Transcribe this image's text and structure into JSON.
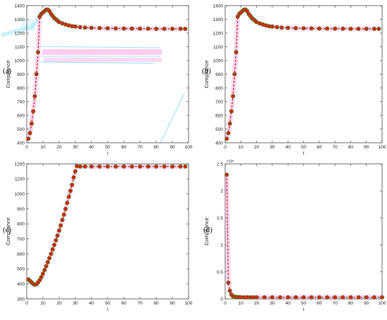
{
  "colors": {
    "line": "#b02010",
    "marker_fill": "#e02010",
    "marker_edge": "#4a7a20",
    "glow": "#ff66cc",
    "artifact_pink": "#ff7fd8",
    "artifact_cyan": "#8fdfff"
  },
  "chart_data": [
    {
      "panel_label": "(a)",
      "type": "line",
      "xlabel": "i",
      "ylabel": "Compliance",
      "xlim": [
        0,
        100
      ],
      "ylim": [
        400,
        1400
      ],
      "xticks": [
        0,
        10,
        20,
        30,
        40,
        50,
        60,
        70,
        80,
        90,
        100
      ],
      "yticks": [
        400,
        500,
        600,
        700,
        800,
        900,
        1000,
        1100,
        1200,
        1300,
        1400
      ],
      "exponent_label": "",
      "series": [
        {
          "x": [
            1,
            2,
            3,
            4,
            5,
            6,
            7,
            8,
            9,
            10,
            11,
            12,
            13,
            14,
            15,
            16,
            17,
            18,
            19,
            20,
            22,
            24,
            26,
            28,
            30,
            33,
            36,
            40,
            45,
            50,
            55,
            60,
            65,
            70,
            75,
            80,
            85,
            90,
            95,
            98
          ],
          "values": [
            430,
            470,
            540,
            630,
            740,
            900,
            1060,
            1320,
            1340,
            1350,
            1360,
            1370,
            1370,
            1360,
            1340,
            1325,
            1310,
            1300,
            1290,
            1280,
            1270,
            1262,
            1256,
            1250,
            1247,
            1243,
            1240,
            1238,
            1236,
            1235,
            1234,
            1233,
            1233,
            1232,
            1232,
            1231,
            1231,
            1231,
            1231,
            1231
          ]
        }
      ]
    },
    {
      "panel_label": "(b)",
      "type": "line",
      "xlabel": "i",
      "ylabel": "Compliance",
      "xlim": [
        0,
        100
      ],
      "ylim": [
        400,
        1400
      ],
      "xticks": [
        0,
        10,
        20,
        30,
        40,
        50,
        60,
        70,
        80,
        90,
        100
      ],
      "yticks": [
        400,
        500,
        600,
        700,
        800,
        900,
        1000,
        1100,
        1200,
        1300,
        1400
      ],
      "exponent_label": "",
      "series": [
        {
          "x": [
            1,
            2,
            3,
            4,
            5,
            6,
            7,
            8,
            9,
            10,
            11,
            12,
            13,
            14,
            15,
            16,
            17,
            18,
            19,
            20,
            22,
            24,
            26,
            28,
            30,
            33,
            36,
            40,
            45,
            50,
            55,
            60,
            65,
            70,
            75,
            80,
            85,
            90,
            95,
            98
          ],
          "values": [
            430,
            470,
            540,
            630,
            740,
            900,
            1060,
            1320,
            1340,
            1350,
            1360,
            1370,
            1370,
            1360,
            1340,
            1325,
            1310,
            1300,
            1290,
            1280,
            1270,
            1262,
            1256,
            1250,
            1247,
            1243,
            1240,
            1238,
            1236,
            1235,
            1234,
            1233,
            1233,
            1232,
            1232,
            1231,
            1231,
            1231,
            1231,
            1231
          ]
        }
      ]
    },
    {
      "panel_label": "(c)",
      "type": "line",
      "xlabel": "i",
      "ylabel": "Compliance",
      "xlim": [
        0,
        100
      ],
      "ylim": [
        300,
        1200
      ],
      "xticks": [
        0,
        10,
        20,
        30,
        40,
        50,
        60,
        70,
        80,
        90,
        100
      ],
      "yticks": [
        300,
        400,
        500,
        600,
        700,
        800,
        900,
        1000,
        1100,
        1200
      ],
      "exponent_label": "",
      "series": [
        {
          "x": [
            1,
            2,
            3,
            4,
            5,
            6,
            7,
            8,
            9,
            10,
            11,
            12,
            13,
            14,
            15,
            16,
            17,
            18,
            19,
            20,
            21,
            22,
            23,
            24,
            25,
            26,
            27,
            28,
            29,
            30,
            31,
            33,
            36,
            40,
            45,
            50,
            55,
            60,
            65,
            70,
            75,
            80,
            85,
            90,
            95,
            98
          ],
          "values": [
            430,
            420,
            410,
            400,
            395,
            398,
            410,
            425,
            445,
            468,
            492,
            518,
            545,
            572,
            600,
            630,
            660,
            690,
            722,
            755,
            790,
            826,
            862,
            900,
            940,
            980,
            1020,
            1060,
            1110,
            1150,
            1185,
            1182,
            1182,
            1182,
            1182,
            1182,
            1182,
            1182,
            1182,
            1182,
            1182,
            1182,
            1182,
            1182,
            1182,
            1182
          ]
        }
      ]
    },
    {
      "panel_label": "(d)",
      "type": "line",
      "xlabel": "i",
      "ylabel": "Compliance",
      "xlim": [
        0,
        100
      ],
      "ylim": [
        0,
        2.5
      ],
      "xticks": [
        0,
        10,
        20,
        30,
        40,
        50,
        60,
        70,
        80,
        90,
        100
      ],
      "yticks": [
        0,
        0.5,
        1,
        1.5,
        2,
        2.5
      ],
      "exponent_label": "×10⁵",
      "series": [
        {
          "x": [
            1,
            2,
            3,
            4,
            5,
            6,
            7,
            8,
            9,
            10,
            12,
            14,
            16,
            18,
            20,
            25,
            30,
            35,
            40,
            45,
            50,
            55,
            60,
            65,
            70,
            75,
            80,
            85,
            90,
            95,
            100
          ],
          "values": [
            2.3,
            0.3,
            0.15,
            0.08,
            0.05,
            0.04,
            0.035,
            0.033,
            0.032,
            0.031,
            0.03,
            0.03,
            0.03,
            0.03,
            0.03,
            0.03,
            0.03,
            0.03,
            0.03,
            0.03,
            0.03,
            0.03,
            0.03,
            0.03,
            0.03,
            0.03,
            0.03,
            0.03,
            0.03,
            0.03,
            0.03
          ]
        }
      ]
    }
  ]
}
